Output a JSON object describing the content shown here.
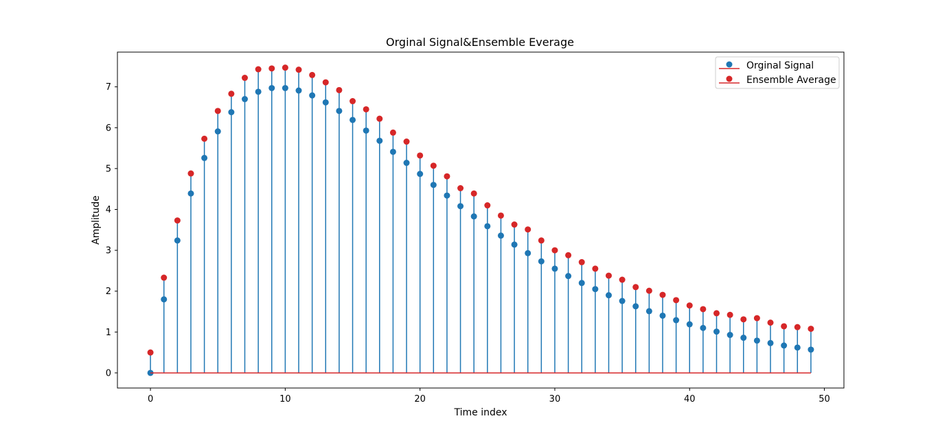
{
  "chart_data": {
    "type": "stem",
    "title": "Orginal Signal&Ensemble Everage",
    "xlabel": "Time index",
    "ylabel": "Amplitude",
    "xlim": [
      -2.45,
      51.45
    ],
    "ylim": [
      -0.37,
      7.85
    ],
    "xticks": [
      0,
      10,
      20,
      30,
      40,
      50
    ],
    "yticks": [
      0,
      1,
      2,
      3,
      4,
      5,
      6,
      7
    ],
    "grid": false,
    "legend_position": "top-right",
    "x": [
      0,
      1,
      2,
      3,
      4,
      5,
      6,
      7,
      8,
      9,
      10,
      11,
      12,
      13,
      14,
      15,
      16,
      17,
      18,
      19,
      20,
      21,
      22,
      23,
      24,
      25,
      26,
      27,
      28,
      29,
      30,
      31,
      32,
      33,
      34,
      35,
      36,
      37,
      38,
      39,
      40,
      41,
      42,
      43,
      44,
      45,
      46,
      47,
      48,
      49
    ],
    "series": [
      {
        "name": "Orginal Signal",
        "color": "#1f77b4",
        "values": [
          0.0,
          1.8,
          3.24,
          4.39,
          5.26,
          5.91,
          6.38,
          6.7,
          6.88,
          6.97,
          6.97,
          6.91,
          6.79,
          6.62,
          6.41,
          6.19,
          5.93,
          5.68,
          5.41,
          5.14,
          4.87,
          4.6,
          4.34,
          4.08,
          3.83,
          3.59,
          3.36,
          3.14,
          2.93,
          2.73,
          2.55,
          2.37,
          2.2,
          2.05,
          1.9,
          1.76,
          1.63,
          1.51,
          1.4,
          1.29,
          1.19,
          1.1,
          1.01,
          0.93,
          0.86,
          0.79,
          0.73,
          0.67,
          0.62,
          0.57
        ]
      },
      {
        "name": "Ensemble Average",
        "color": "#d62728",
        "values": [
          0.5,
          2.33,
          3.73,
          4.88,
          5.73,
          6.41,
          6.83,
          7.22,
          7.43,
          7.45,
          7.47,
          7.42,
          7.29,
          7.11,
          6.92,
          6.65,
          6.45,
          6.22,
          5.88,
          5.66,
          5.32,
          5.07,
          4.81,
          4.52,
          4.39,
          4.1,
          3.85,
          3.63,
          3.51,
          3.24,
          3.0,
          2.88,
          2.71,
          2.55,
          2.38,
          2.28,
          2.1,
          2.01,
          1.91,
          1.78,
          1.65,
          1.56,
          1.46,
          1.42,
          1.31,
          1.34,
          1.23,
          1.14,
          1.12,
          1.08
        ]
      }
    ],
    "baseline": 0,
    "baseline_color": "#d62728",
    "stem_color": "#1f77b4"
  }
}
